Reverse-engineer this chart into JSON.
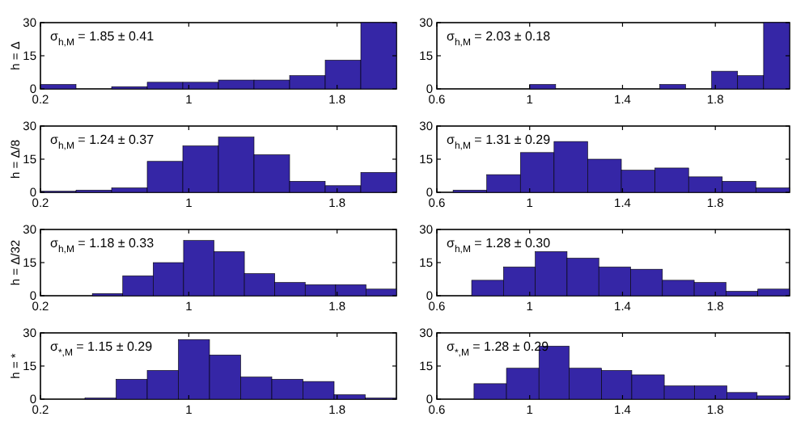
{
  "chart_data": [
    {
      "type": "histogram",
      "ylabel": "h = Δ",
      "annotations": [
        "σ$_{h,M}$ = 1.85 ± 0.41"
      ],
      "bins": [
        0.2,
        0.392,
        0.584,
        0.776,
        0.968,
        1.16,
        1.352,
        1.544,
        1.736,
        1.928,
        2.12
      ],
      "values": [
        2,
        0,
        1,
        3,
        3,
        4,
        4,
        6,
        13,
        30
      ],
      "color": "#3526a6",
      "xlim": [
        0.2,
        2.12
      ],
      "xticks": [
        0.2,
        1,
        1.8
      ],
      "ylim": [
        0,
        30
      ],
      "yticks": [
        0,
        15,
        30
      ],
      "grid": false
    },
    {
      "type": "histogram",
      "annotations": [
        "σ$_{h,M}$ = 2.03 ± 0.18"
      ],
      "bins": [
        1.0,
        1.112,
        1.224,
        1.336,
        1.448,
        1.56,
        1.672,
        1.784,
        1.896,
        2.008,
        2.12
      ],
      "values": [
        2,
        0,
        0,
        0,
        0,
        2,
        0,
        8,
        6,
        30
      ],
      "color": "#3526a6",
      "xlim": [
        0.6,
        2.12
      ],
      "xticks": [
        0.6,
        1,
        1.4,
        1.8
      ],
      "ylim": [
        0,
        30
      ],
      "yticks": [
        0,
        15,
        30
      ],
      "grid": false
    },
    {
      "type": "histogram",
      "ylabel": "h = Δ/8",
      "annotations": [
        "σ$_{h,M}$ = 1.24 ± 0.37"
      ],
      "bins": [
        0.2,
        0.392,
        0.584,
        0.776,
        0.968,
        1.16,
        1.352,
        1.544,
        1.736,
        1.928,
        2.12
      ],
      "values": [
        0.5,
        1,
        2,
        14,
        21,
        25,
        17,
        5,
        3,
        9
      ],
      "color": "#3526a6",
      "xlim": [
        0.2,
        2.12
      ],
      "xticks": [
        0.2,
        1,
        1.8
      ],
      "ylim": [
        0,
        30
      ],
      "yticks": [
        0,
        15,
        30
      ],
      "grid": false
    },
    {
      "type": "histogram",
      "annotations": [
        "σ$_{h,M}$ = 1.31 ± 0.29"
      ],
      "bins": [
        0.67,
        0.815,
        0.96,
        1.105,
        1.25,
        1.395,
        1.54,
        1.685,
        1.83,
        1.975,
        2.12
      ],
      "values": [
        1,
        8,
        18,
        23,
        15,
        10,
        11,
        7,
        5,
        2
      ],
      "color": "#3526a6",
      "xlim": [
        0.6,
        2.12
      ],
      "xticks": [
        0.6,
        1,
        1.4,
        1.8
      ],
      "ylim": [
        0,
        30
      ],
      "yticks": [
        0,
        15,
        30
      ],
      "grid": false
    },
    {
      "type": "histogram",
      "ylabel": "h = Δ/32",
      "annotations": [
        "σ$_{h,M}$ = 1.18 ± 0.33"
      ],
      "bins": [
        0.48,
        0.644,
        0.808,
        0.972,
        1.136,
        1.3,
        1.464,
        1.628,
        1.792,
        1.956,
        2.12
      ],
      "values": [
        1,
        9,
        15,
        25,
        20,
        10,
        6,
        5,
        5,
        3
      ],
      "color": "#3526a6",
      "xlim": [
        0.2,
        2.12
      ],
      "xticks": [
        0.2,
        1,
        1.8
      ],
      "ylim": [
        0,
        30
      ],
      "yticks": [
        0,
        15,
        30
      ],
      "grid": false
    },
    {
      "type": "histogram",
      "annotations": [
        "σ$_{h,M}$ = 1.28 ± 0.30"
      ],
      "bins": [
        0.75,
        0.887,
        1.024,
        1.161,
        1.298,
        1.435,
        1.572,
        1.709,
        1.846,
        1.983,
        2.12
      ],
      "values": [
        7,
        13,
        20,
        17,
        13,
        12,
        7,
        6,
        2,
        3
      ],
      "color": "#3526a6",
      "xlim": [
        0.6,
        2.12
      ],
      "xticks": [
        0.6,
        1,
        1.4,
        1.8
      ],
      "ylim": [
        0,
        30
      ],
      "yticks": [
        0,
        15,
        30
      ],
      "grid": false
    },
    {
      "type": "histogram",
      "ylabel": "h = *",
      "annotations": [
        "σ$_{*,M}$ = 1.15 ± 0.29"
      ],
      "bins": [
        0.44,
        0.608,
        0.776,
        0.944,
        1.112,
        1.28,
        1.448,
        1.616,
        1.784,
        1.952,
        2.12
      ],
      "values": [
        0.5,
        9,
        13,
        27,
        20,
        10,
        9,
        8,
        2,
        0.5
      ],
      "color": "#3526a6",
      "xlim": [
        0.2,
        2.12
      ],
      "xticks": [
        0.2,
        1,
        1.8
      ],
      "ylim": [
        0,
        30
      ],
      "yticks": [
        0,
        15,
        30
      ],
      "grid": false
    },
    {
      "type": "histogram",
      "annotations": [
        "σ$_{*,M}$ = 1.28 ± 0.29"
      ],
      "bins": [
        0.76,
        0.9,
        1.04,
        1.17,
        1.31,
        1.44,
        1.58,
        1.71,
        1.85,
        1.98,
        2.12
      ],
      "values": [
        7,
        14,
        24,
        14,
        13,
        11,
        6,
        6,
        3,
        1.5
      ],
      "color": "#3526a6",
      "xlim": [
        0.6,
        2.12
      ],
      "xticks": [
        0.6,
        1,
        1.4,
        1.8
      ],
      "ylim": [
        0,
        30
      ],
      "yticks": [
        0,
        15,
        30
      ],
      "grid": false
    }
  ]
}
